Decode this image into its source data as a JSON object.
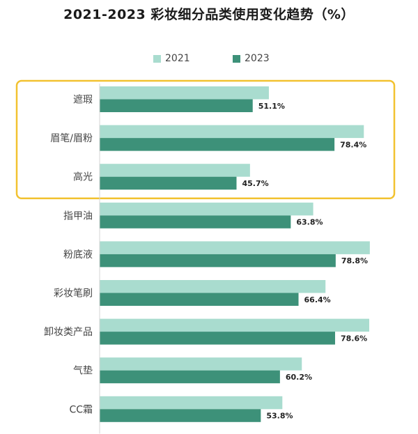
{
  "chart_data": {
    "type": "bar",
    "orientation": "horizontal",
    "title": "2021-2023 彩妆细分品类使用变化趋势（%）",
    "categories": [
      "遮瑕",
      "眉笔/眉粉",
      "高光",
      "指甲油",
      "粉底液",
      "彩妆笔刷",
      "卸妆类产品",
      "气垫",
      "CC霜"
    ],
    "series": [
      {
        "name": "2021",
        "color": "#a9dccf",
        "values": [
          56.5,
          88.2,
          50.2,
          71.3,
          90.2,
          75.4,
          90.0,
          67.5,
          61.0
        ]
      },
      {
        "name": "2023",
        "color": "#3d9179",
        "values": [
          51.1,
          78.4,
          45.7,
          63.8,
          78.8,
          66.4,
          78.6,
          60.2,
          53.8
        ]
      }
    ],
    "data_labels": [
      "51.1%",
      "78.4%",
      "45.7%",
      "63.8%",
      "78.8%",
      "66.4%",
      "78.6%",
      "60.2%",
      "53.8%"
    ],
    "highlight": {
      "categories": [
        "遮瑕",
        "眉笔/眉粉",
        "高光"
      ],
      "color": "#f2c230"
    },
    "legend_position": "top",
    "grid": false
  }
}
